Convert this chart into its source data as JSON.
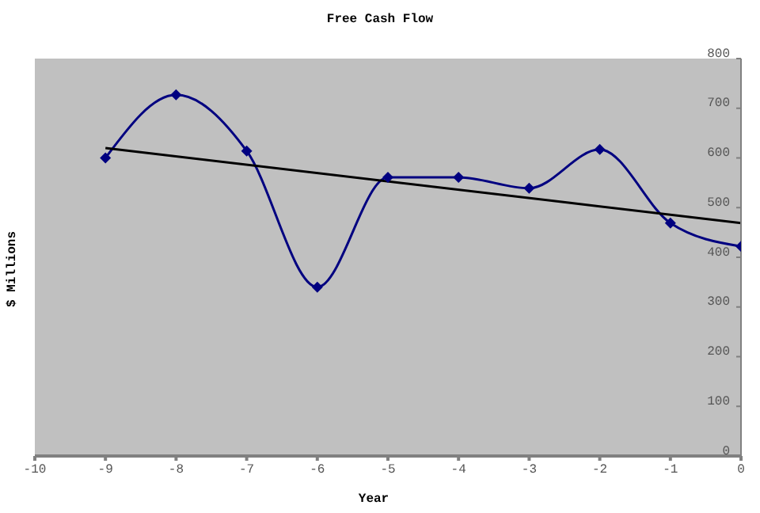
{
  "chart_data": {
    "type": "line",
    "title": "Free Cash Flow",
    "xlabel": "Year",
    "ylabel": "$ Millions",
    "x": [
      -9,
      -8,
      -7,
      -6,
      -5,
      -4,
      -3,
      -2,
      -1,
      0
    ],
    "series": [
      {
        "color": "#000080",
        "values": [
          600,
          727,
          614,
          340,
          561,
          561,
          539,
          617,
          469,
          422
        ],
        "marker": "diamond"
      },
      {
        "type": "line",
        "x": [
          -9,
          0
        ],
        "color": "#000000",
        "values": [
          620,
          469
        ],
        "marker": "none"
      }
    ],
    "xlim": [
      -10,
      0
    ],
    "xticks": [
      -10,
      -9,
      -8,
      -7,
      -6,
      -5,
      -4,
      -3,
      -2,
      -1,
      0
    ],
    "ylim": [
      0,
      800
    ],
    "yticks": [
      0,
      100,
      200,
      300,
      400,
      500,
      600,
      700,
      800
    ],
    "grid": false
  }
}
